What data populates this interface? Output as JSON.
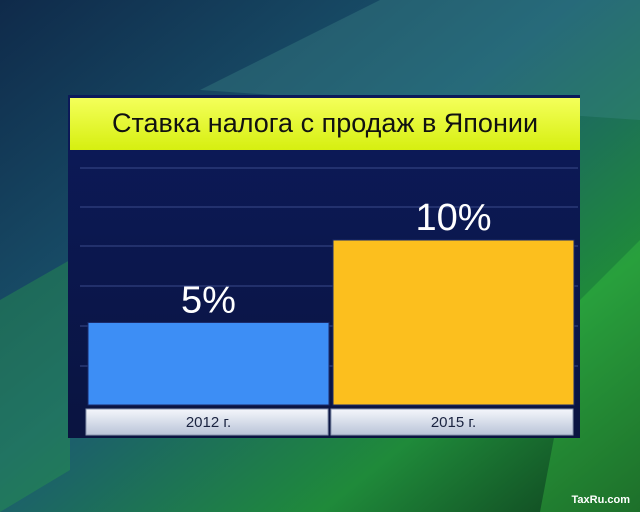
{
  "chart_data": {
    "type": "bar",
    "title": "Ставка налога с продаж в Японии",
    "categories": [
      "2012 г.",
      "2015 г."
    ],
    "series": [
      {
        "colors": [
          "#3d8ef5",
          "#fcbf1e"
        ],
        "values": [
          5,
          10
        ],
        "value_labels": [
          "5%",
          "10%"
        ]
      }
    ],
    "watermark": "TaxRu.com"
  }
}
